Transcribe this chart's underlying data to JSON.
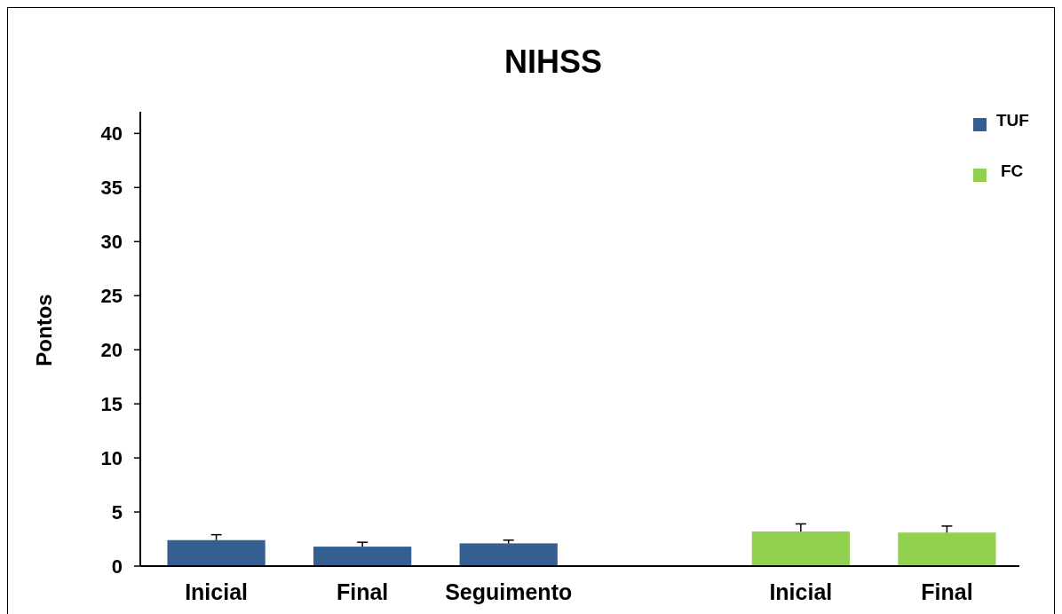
{
  "chart_data": {
    "type": "bar",
    "title": "NIHSS",
    "ylabel": "Pontos",
    "categories": [
      "Inicial",
      "Final",
      "Seguimento",
      null,
      "Inicial",
      "Final"
    ],
    "series": [
      {
        "name": "TUF",
        "color": "#365f91",
        "values": [
          2.4,
          1.8,
          2.1,
          null,
          null,
          null
        ],
        "errors": [
          [
            2.4,
            2.9
          ],
          [
            1.8,
            2.2
          ],
          [
            2.1,
            2.4
          ],
          null,
          null,
          null
        ]
      },
      {
        "name": "FC",
        "color": "#92d050",
        "values": [
          null,
          null,
          null,
          null,
          3.2,
          3.1
        ],
        "errors": [
          null,
          null,
          null,
          null,
          [
            3.2,
            3.9
          ],
          [
            3.1,
            3.7
          ]
        ]
      }
    ],
    "ylim": [
      0,
      42
    ],
    "yticks": [
      0,
      5,
      10,
      15,
      20,
      25,
      30,
      35,
      40
    ],
    "grid": false,
    "legend": "top right"
  }
}
